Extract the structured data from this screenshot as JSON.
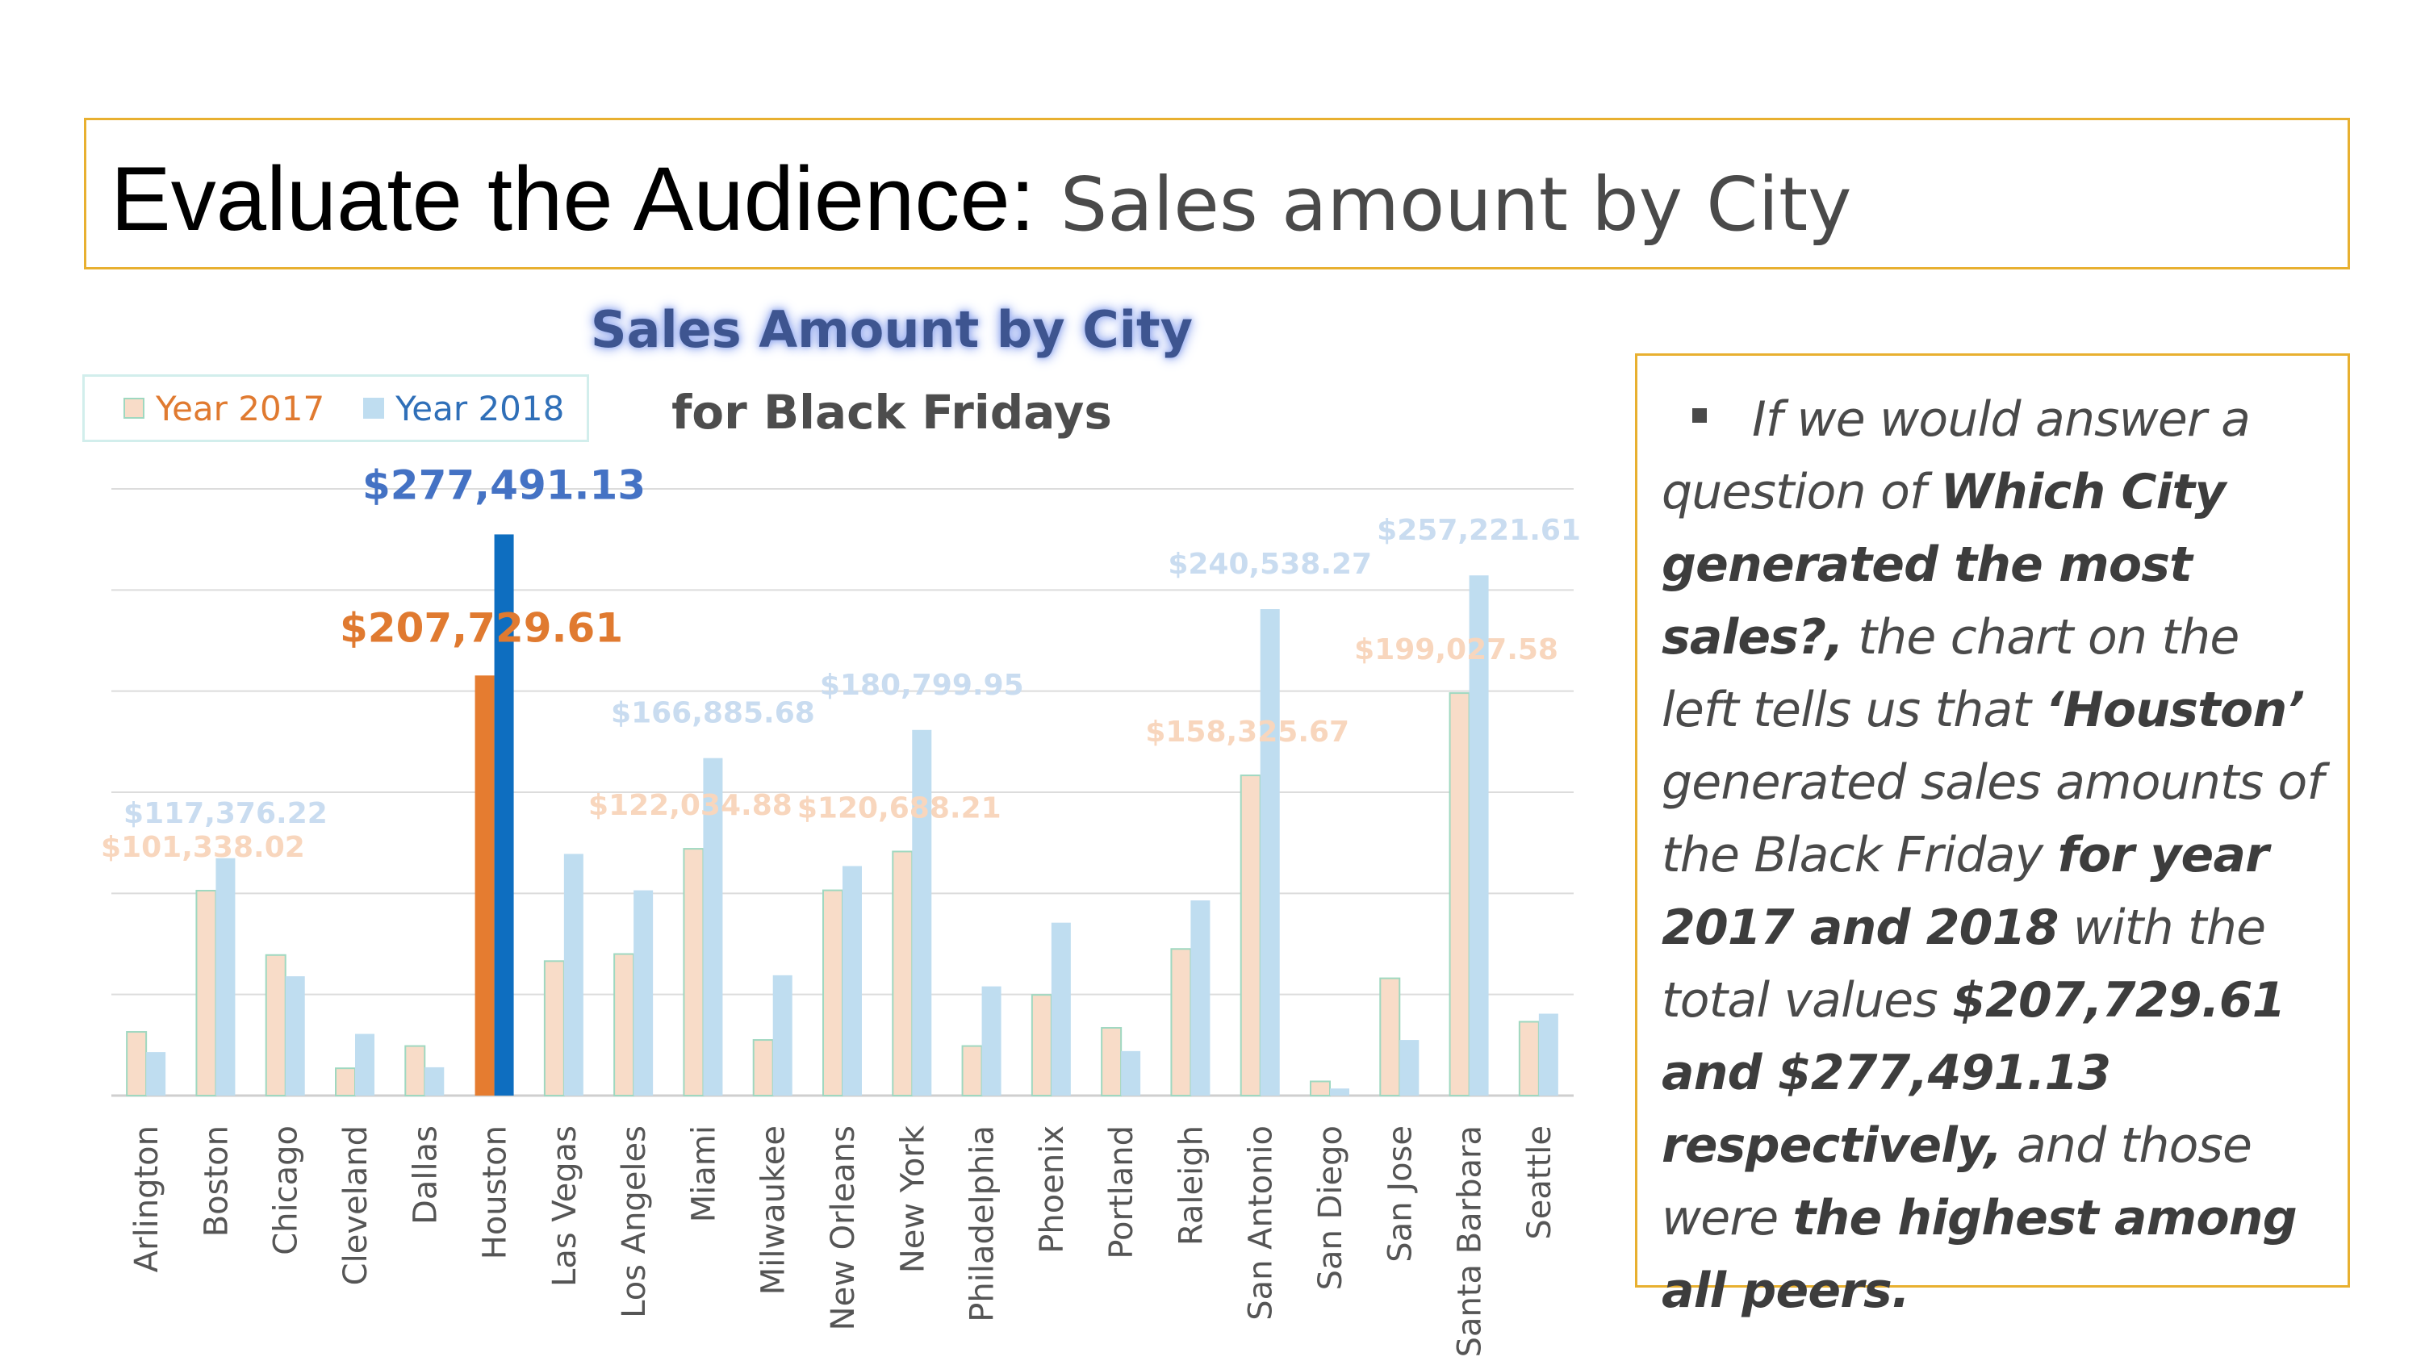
{
  "slide": {
    "title_main": "Evaluate the Audience:",
    "title_sub": "Sales amount by City"
  },
  "note": {
    "t1": "If we would answer a question of ",
    "b1": "Which City generated the most sales?,",
    "t2": " the chart on the left tells us that  ",
    "b2": "‘Houston’",
    "t3": "  generated sales amounts of the Black Friday ",
    "b3": "for year 2017 and 2018",
    "t4": " with the total values ",
    "b4": "$207,729.61 and $277,491.13 respectively,",
    "t5": " and those were ",
    "b5": "the highest among all peers."
  },
  "chart_data": {
    "type": "bar",
    "title": "Sales Amount by City",
    "subtitle": "for Black Fridays",
    "legend_position": "top-left",
    "grid": true,
    "ylim": [
      0,
      300000
    ],
    "categories": [
      "Arlington",
      "Boston",
      "Chicago",
      "Cleveland",
      "Dallas",
      "Houston",
      "Las Vegas",
      "Los Angeles",
      "Miami",
      "Milwaukee",
      "New Orleans",
      "New York",
      "Philadelphia",
      "Phoenix",
      "Portland",
      "Raleigh",
      "San Antonio",
      "San Diego",
      "San Jose",
      "Santa Barbara",
      "Seattle"
    ],
    "series": [
      {
        "name": "Year 2017",
        "color": "#F8DCC8",
        "edge_color": "#9fd8c0",
        "highlight_color": "#E57C30",
        "label_color": "#F8D6BD",
        "highlight_label_color": "#E07A30",
        "values": [
          31500,
          101338.02,
          69500,
          13500,
          24500,
          207729.61,
          66500,
          70000,
          122034.88,
          27500,
          101500,
          120688.21,
          24500,
          49800,
          33500,
          72500,
          158325.67,
          7000,
          58000,
          199027.58,
          36500
        ],
        "labels": [
          "",
          "$101,338.02",
          "",
          "",
          "",
          "$207,729.61",
          "",
          "",
          "$122,034.88",
          "",
          "",
          "$120,688.21",
          "",
          "",
          "",
          "",
          "$158,325.67",
          "",
          "",
          "$199,027.58",
          ""
        ]
      },
      {
        "name": "Year 2018",
        "color": "#BFDDF0",
        "highlight_color": "#0E6EC0",
        "label_color": "#C9DCF0",
        "highlight_label_color": "#4472C4",
        "values": [
          21500,
          117376.22,
          59000,
          30500,
          14000,
          277491.13,
          119500,
          101500,
          166885.68,
          59500,
          113500,
          180799.95,
          54000,
          85500,
          22000,
          96500,
          240538.27,
          3500,
          27500,
          257221.61,
          40500
        ],
        "labels": [
          "",
          "$117,376.22",
          "",
          "",
          "",
          "$277,491.13",
          "",
          "",
          "$166,885.68",
          "",
          "",
          "$180,799.95",
          "",
          "",
          "",
          "",
          "$240,538.27",
          "",
          "",
          "$257,221.61",
          ""
        ]
      }
    ],
    "highlight_category": "Houston",
    "legend": [
      "Year 2017",
      "Year 2018"
    ]
  }
}
